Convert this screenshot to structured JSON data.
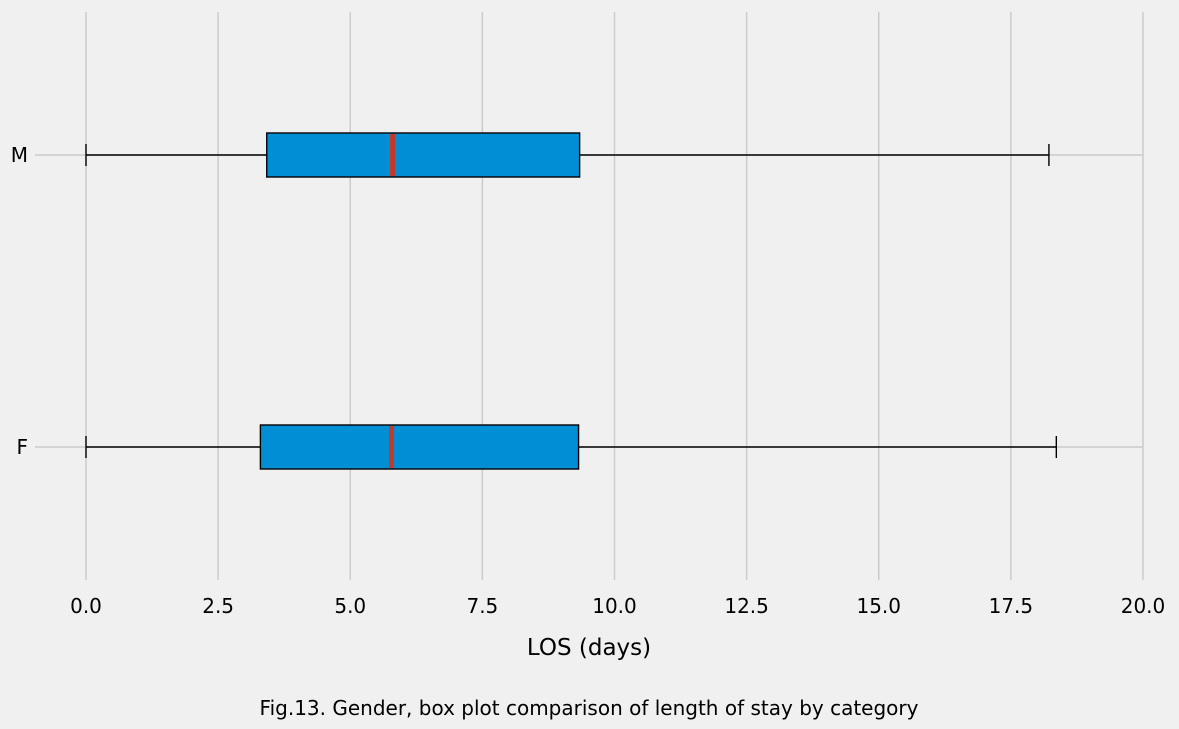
{
  "chart_data": {
    "type": "boxplot",
    "orientation": "horizontal",
    "xlabel": "LOS (days)",
    "caption": "Fig.13. Gender, box plot comparison of length of stay by category",
    "xlim": [
      -0.95,
      20.0
    ],
    "xticks": [
      0.0,
      2.5,
      5.0,
      7.5,
      10.0,
      12.5,
      15.0,
      17.5,
      20.0
    ],
    "xtick_labels": [
      "0.0",
      "2.5",
      "5.0",
      "7.5",
      "10.0",
      "12.5",
      "15.0",
      "17.5",
      "20.0"
    ],
    "grid": true,
    "categories": [
      "M",
      "F"
    ],
    "boxes": [
      {
        "category": "M",
        "whisker_low": 0.0,
        "q1": 3.42,
        "median": 5.8,
        "q3": 9.34,
        "whisker_high": 18.22
      },
      {
        "category": "F",
        "whisker_low": 0.0,
        "q1": 3.3,
        "median": 5.78,
        "q3": 9.32,
        "whisker_high": 18.36
      }
    ],
    "colors": {
      "box_fill": "#008fd5",
      "median": "#c0392b",
      "grid": "#cbcbcb",
      "background": "#f0f0f0",
      "edge": "#000000"
    }
  }
}
